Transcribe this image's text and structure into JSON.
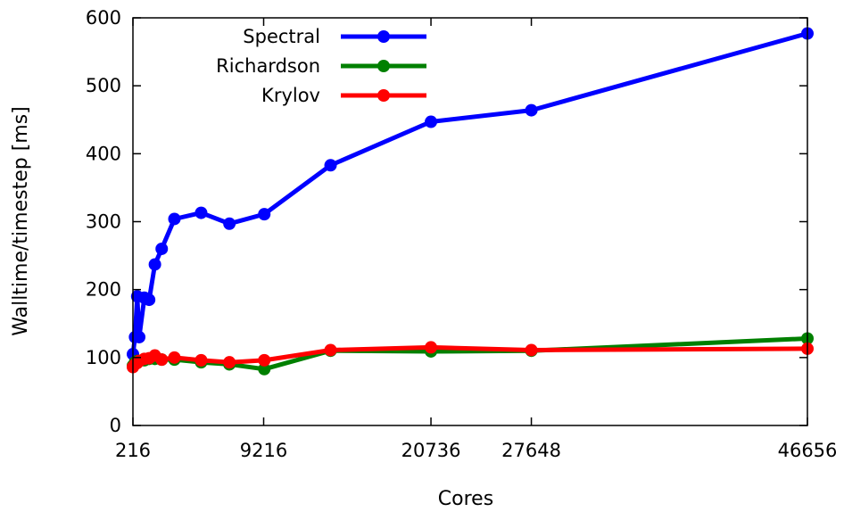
{
  "chart_data": {
    "type": "line",
    "xlabel": "Cores",
    "ylabel": "Walltime/timestep [ms]",
    "xlim": [
      216,
      46656
    ],
    "ylim": [
      0,
      600
    ],
    "x_ticks": [
      216,
      9216,
      20736,
      27648,
      46656
    ],
    "y_ticks": [
      0,
      100,
      200,
      300,
      400,
      500,
      600
    ],
    "grid": false,
    "legend_position": "top-left",
    "series": [
      {
        "name": "Spectral",
        "color": "#0000ff",
        "points": [
          [
            216,
            105
          ],
          [
            360,
            130
          ],
          [
            512,
            190
          ],
          [
            648,
            130
          ],
          [
            1000,
            188
          ],
          [
            1331,
            185
          ],
          [
            1728,
            237
          ],
          [
            2197,
            260
          ],
          [
            3072,
            304
          ],
          [
            4913,
            313
          ],
          [
            6859,
            297
          ],
          [
            9261,
            311
          ],
          [
            13824,
            383
          ],
          [
            20736,
            447
          ],
          [
            27648,
            464
          ],
          [
            46656,
            577
          ]
        ]
      },
      {
        "name": "Richardson",
        "color": "#008000",
        "points": [
          [
            216,
            88
          ],
          [
            360,
            93
          ],
          [
            512,
            95
          ],
          [
            648,
            95
          ],
          [
            1000,
            96
          ],
          [
            1331,
            98
          ],
          [
            1728,
            98
          ],
          [
            2197,
            97
          ],
          [
            3072,
            97
          ],
          [
            4913,
            93
          ],
          [
            6859,
            90
          ],
          [
            9261,
            83
          ],
          [
            13824,
            110
          ],
          [
            20736,
            109
          ],
          [
            27648,
            110
          ],
          [
            46656,
            128
          ]
        ]
      },
      {
        "name": "Krylov",
        "color": "#ff0000",
        "points": [
          [
            216,
            86
          ],
          [
            360,
            90
          ],
          [
            512,
            92
          ],
          [
            648,
            95
          ],
          [
            1000,
            98
          ],
          [
            1331,
            99
          ],
          [
            1728,
            103
          ],
          [
            2197,
            97
          ],
          [
            3072,
            100
          ],
          [
            4913,
            96
          ],
          [
            6859,
            93
          ],
          [
            9261,
            96
          ],
          [
            13824,
            111
          ],
          [
            20736,
            115
          ],
          [
            27648,
            111
          ],
          [
            46656,
            113
          ]
        ]
      }
    ]
  }
}
